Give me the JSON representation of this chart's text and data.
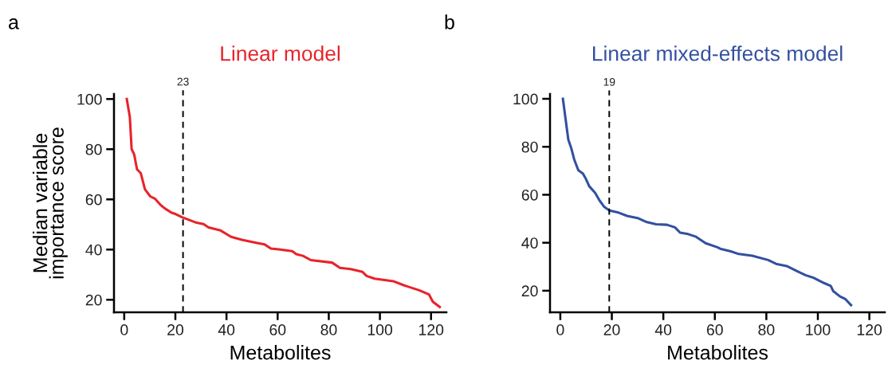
{
  "chart_data": [
    {
      "type": "line",
      "title": "Linear model",
      "xlabel": "Metabolites",
      "ylabel": "Median variable importance score",
      "annotations": [
        "a"
      ],
      "xlim": [
        -4,
        126
      ],
      "xticks": [
        0,
        20,
        40,
        60,
        80,
        100,
        120
      ],
      "ylim": [
        15,
        102
      ],
      "yticks": [
        20,
        40,
        60,
        80,
        100
      ],
      "grid": false,
      "legend": false,
      "ref_lines": [
        {
          "axis": "x",
          "value": 23,
          "label": "23",
          "color": "#000000",
          "line_style": "dashed"
        }
      ],
      "series": [
        {
          "color": "#e8232a",
          "x": [
            1,
            2.2,
            2.9,
            3.9,
            5,
            6.5,
            8.1,
            10.2,
            12,
            14.3,
            15.9,
            18.5,
            20,
            22.6,
            28.3,
            31,
            33,
            37.7,
            41.8,
            46,
            51.2,
            54.8,
            57.4,
            60.5,
            65.7,
            67.3,
            69.9,
            73,
            81.3,
            84.4,
            88.6,
            93.2,
            94.8,
            97.9,
            105.2,
            109.3,
            115.6,
            119.2,
            120.7,
            123.4
          ],
          "values": [
            100,
            92.8,
            80,
            77.9,
            72,
            70.4,
            64,
            61.2,
            60.3,
            57.7,
            56.4,
            54.7,
            54.2,
            52.9,
            50.7,
            50.2,
            48.8,
            47.6,
            45.1,
            43.9,
            42.8,
            42.1,
            40.4,
            40.1,
            39.4,
            38.2,
            37.5,
            35.8,
            34.8,
            32.7,
            32.2,
            31.1,
            29.5,
            28.4,
            27.4,
            25.8,
            23.7,
            22.1,
            19.2,
            17.1
          ]
        }
      ]
    },
    {
      "type": "line",
      "title": "Linear mixed-effects model",
      "xlabel": "Metabolites",
      "annotations": [
        "b"
      ],
      "xlim": [
        -4,
        126
      ],
      "xticks": [
        0,
        20,
        40,
        60,
        80,
        100,
        120
      ],
      "ylim": [
        11,
        102
      ],
      "yticks": [
        20,
        40,
        60,
        80,
        100
      ],
      "grid": false,
      "legend": false,
      "ref_lines": [
        {
          "axis": "x",
          "value": 19,
          "label": "19",
          "color": "#000000",
          "line_style": "dashed"
        }
      ],
      "series": [
        {
          "color": "#3350a0",
          "x": [
            1,
            3.1,
            4.2,
            5.4,
            7,
            8.8,
            9.8,
            11.2,
            13.5,
            15.3,
            17.1,
            19.1,
            22.2,
            25.9,
            30,
            33.6,
            37.2,
            41.4,
            44.5,
            46.5,
            49.6,
            52.7,
            56.4,
            61,
            62.1,
            66.2,
            69.3,
            74.5,
            80.7,
            83.8,
            87.9,
            92.1,
            95.2,
            98.3,
            102.4,
            105,
            106,
            108.6,
            110.7,
            112.9
          ],
          "values": [
            100,
            83,
            79.6,
            74.7,
            70.2,
            68.8,
            66.9,
            63.6,
            60.8,
            57.5,
            54.9,
            53.4,
            52.7,
            51.2,
            50.3,
            48.6,
            47.7,
            47.5,
            46.4,
            44.2,
            43.6,
            42.5,
            39.8,
            38.1,
            37.5,
            36.4,
            35.3,
            34.6,
            32.8,
            31.2,
            30.3,
            28.1,
            26.5,
            25.4,
            23.2,
            22,
            19.8,
            17.6,
            16.5,
            14
          ]
        }
      ]
    }
  ]
}
